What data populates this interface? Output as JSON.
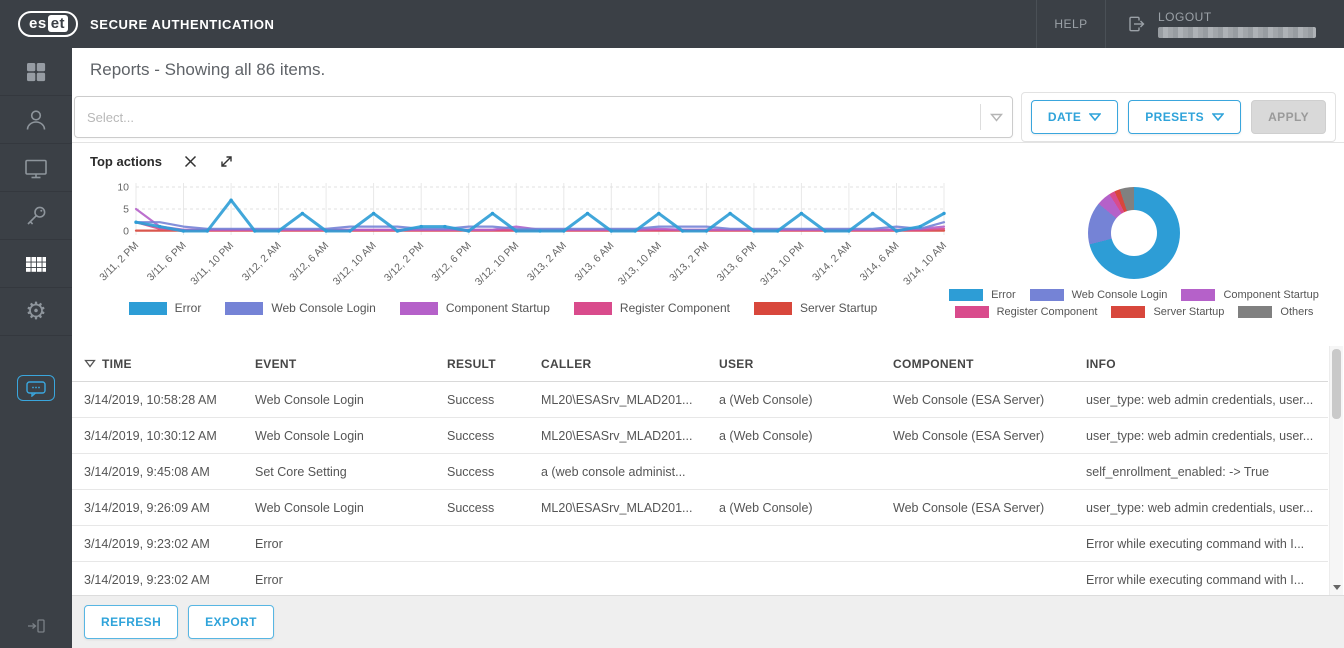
{
  "header": {
    "logo_left": "es",
    "logo_right": "et",
    "product": "SECURE AUTHENTICATION",
    "help": "HELP",
    "logout": "LOGOUT"
  },
  "page": {
    "title": "Reports - Showing all 86 items."
  },
  "filter": {
    "select_placeholder": "Select...",
    "date_label": "DATE",
    "presets_label": "PRESETS",
    "apply_label": "APPLY"
  },
  "widget": {
    "title": "Top actions"
  },
  "colors": {
    "accent_blue": "#2fa3da",
    "header_dark": "#3b4046",
    "error": "#2d9dd6",
    "web_console_login": "#7583d6",
    "component_startup": "#b561c9",
    "register_component": "#d94b8c",
    "server_startup": "#d8473c",
    "others": "#808080"
  },
  "chart_data": [
    {
      "type": "line",
      "title": "Top actions",
      "ylim": [
        0,
        10
      ],
      "yticks": [
        0,
        5,
        10
      ],
      "grid": true,
      "legend_position": "bottom",
      "x_labels": [
        "3/11, 2 PM",
        "3/11, 6 PM",
        "3/11, 10 PM",
        "3/12, 2 AM",
        "3/12, 6 AM",
        "3/12, 10 AM",
        "3/12, 2 PM",
        "3/12, 6 PM",
        "3/12, 10 PM",
        "3/13, 2 AM",
        "3/13, 6 AM",
        "3/13, 10 AM",
        "3/13, 2 PM",
        "3/13, 6 PM",
        "3/13, 10 PM",
        "3/14, 2 AM",
        "3/14, 6 AM",
        "3/14, 10 AM"
      ],
      "series": [
        {
          "name": "Error",
          "color": "#2d9dd6",
          "values": [
            2,
            1,
            0,
            0,
            7,
            0,
            0,
            4,
            0,
            0,
            4,
            0,
            1,
            1,
            0,
            4,
            0,
            0,
            0,
            4,
            0,
            0,
            4,
            0,
            0,
            4,
            0,
            0,
            4,
            0,
            0,
            4,
            0,
            1,
            4
          ]
        },
        {
          "name": "Web Console Login",
          "color": "#7583d6",
          "values": [
            2,
            2,
            1,
            0.5,
            0.5,
            0.5,
            0.5,
            0.5,
            0.5,
            1,
            1,
            1,
            0.5,
            0.5,
            1,
            1,
            0.5,
            0.5,
            0.5,
            0.5,
            0.5,
            0.5,
            1,
            1,
            1,
            0.5,
            0.5,
            0.5,
            0.5,
            0.5,
            0.5,
            0.5,
            1,
            0.5,
            2
          ]
        },
        {
          "name": "Component Startup",
          "color": "#b561c9",
          "values": [
            5,
            1,
            0.3,
            0.3,
            0.3,
            0.3,
            0.3,
            0.3,
            0.3,
            0.3,
            0.3,
            0.3,
            0.3,
            0.3,
            0.3,
            0.3,
            1,
            0.3,
            0.3,
            0.3,
            0.3,
            0.3,
            0.5,
            0.3,
            0.3,
            0.3,
            0.3,
            0.3,
            0.3,
            0.3,
            0.3,
            0.3,
            0.3,
            0.5,
            1
          ]
        },
        {
          "name": "Register Component",
          "color": "#d94b8c",
          "values": [
            2,
            0.5,
            0.2,
            0.2,
            0.2,
            0.2,
            0.2,
            0.2,
            0.2,
            0.2,
            0.2,
            0.2,
            0.2,
            0.2,
            0.2,
            0.2,
            0.2,
            0.2,
            0.2,
            0.2,
            0.2,
            0.2,
            0.2,
            0.2,
            0.2,
            0.2,
            0.2,
            0.2,
            0.2,
            0.2,
            0.2,
            0.2,
            0.2,
            0.2,
            0.5
          ]
        },
        {
          "name": "Server Startup",
          "color": "#d8473c",
          "values": [
            0.1,
            0.1,
            0.1,
            0.1,
            0.1,
            0.1,
            0.1,
            0.1,
            0.1,
            0.1,
            0.1,
            0.1,
            0.1,
            0.1,
            0.1,
            0.1,
            0.1,
            0.1,
            0.1,
            0.1,
            0.1,
            0.1,
            0.1,
            0.1,
            0.1,
            0.1,
            0.1,
            0.1,
            0.1,
            0.1,
            0.1,
            0.1,
            0.1,
            0.1,
            0.1
          ]
        }
      ]
    },
    {
      "type": "pie",
      "donut": true,
      "legend_position": "bottom",
      "labels": [
        "Error",
        "Web Console Login",
        "Component Startup",
        "Register Component",
        "Server Startup",
        "Others"
      ],
      "values": [
        71,
        15,
        5,
        2,
        2,
        5
      ],
      "colors": [
        "#2d9dd6",
        "#7583d6",
        "#b561c9",
        "#d94b8c",
        "#d8473c",
        "#808080"
      ]
    }
  ],
  "table": {
    "columns": [
      "TIME",
      "EVENT",
      "RESULT",
      "CALLER",
      "USER",
      "COMPONENT",
      "INFO"
    ],
    "sorted_column": "TIME",
    "rows": [
      [
        "3/14/2019, 10:58:28 AM",
        "Web Console Login",
        "Success",
        "ML20\\ESASrv_MLAD201...",
        "a (Web Console)",
        "Web Console (ESA Server)",
        "user_type: web admin credentials, user..."
      ],
      [
        "3/14/2019, 10:30:12 AM",
        "Web Console Login",
        "Success",
        "ML20\\ESASrv_MLAD201...",
        "a (Web Console)",
        "Web Console (ESA Server)",
        "user_type: web admin credentials, user..."
      ],
      [
        "3/14/2019, 9:45:08 AM",
        "Set Core Setting",
        "Success",
        "a (web console administ...",
        "",
        "",
        "self_enrollment_enabled: -> True"
      ],
      [
        "3/14/2019, 9:26:09 AM",
        "Web Console Login",
        "Success",
        "ML20\\ESASrv_MLAD201...",
        "a (Web Console)",
        "Web Console (ESA Server)",
        "user_type: web admin credentials, user..."
      ],
      [
        "3/14/2019, 9:23:02 AM",
        "Error",
        "",
        "",
        "",
        "",
        "Error while executing command with I..."
      ],
      [
        "3/14/2019, 9:23:02 AM",
        "Error",
        "",
        "",
        "",
        "",
        "Error while executing command with I..."
      ]
    ]
  },
  "footer": {
    "refresh_label": "REFRESH",
    "export_label": "EXPORT"
  },
  "icons": [
    "dashboard-grid",
    "users",
    "computers",
    "key",
    "reports-grid",
    "settings-gear",
    "feedback-chat",
    "collapse-panel",
    "logout",
    "help",
    "close",
    "expand",
    "sort-desc",
    "dropdown-caret"
  ]
}
